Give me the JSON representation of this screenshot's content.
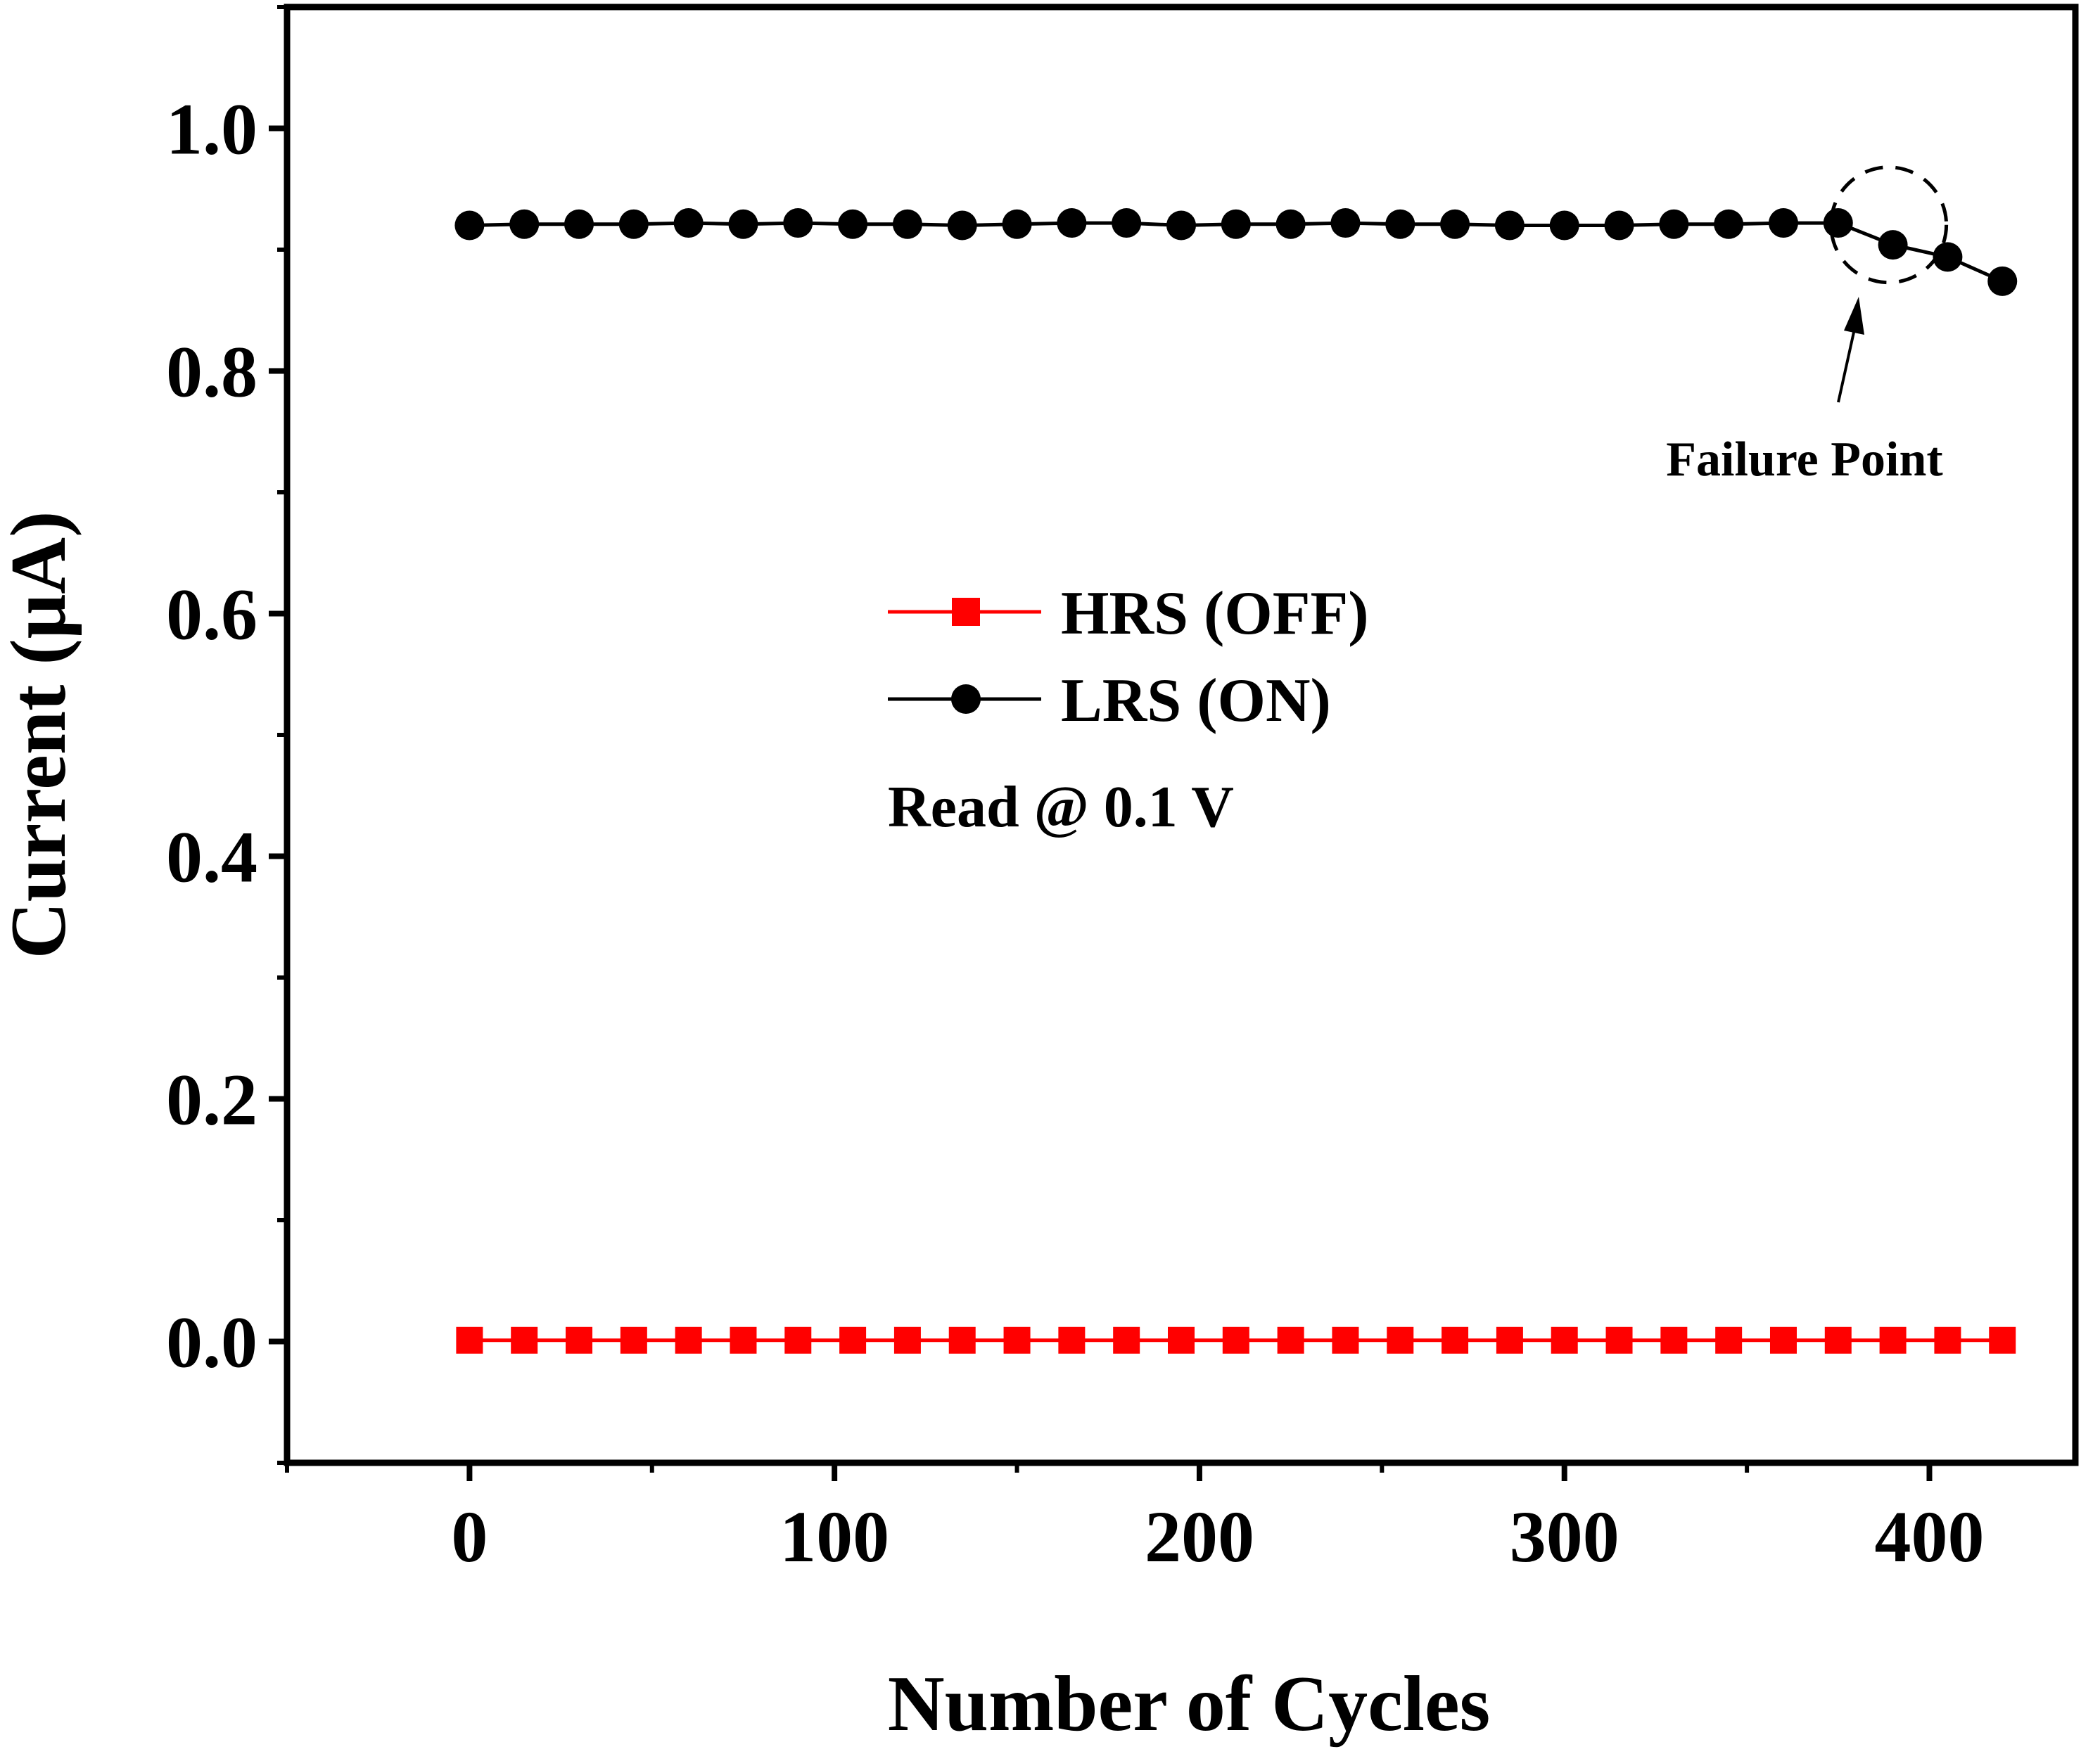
{
  "chart_data": {
    "type": "line",
    "title": "",
    "xlabel": "Number of Cycles",
    "ylabel": "Current (μA)",
    "xlim": [
      -50,
      440
    ],
    "ylim": [
      -0.1,
      1.1
    ],
    "x_ticks": [
      0,
      100,
      200,
      300,
      400
    ],
    "x_tick_labels": [
      "0",
      "100",
      "200",
      "300",
      "400"
    ],
    "y_ticks": [
      0.0,
      0.2,
      0.4,
      0.6,
      0.8,
      1.0
    ],
    "y_tick_labels": [
      "0.0",
      "0.2",
      "0.4",
      "0.6",
      "0.8",
      "1.0"
    ],
    "grid": false,
    "legend_position": "center",
    "x": [
      0,
      15,
      30,
      45,
      60,
      75,
      90,
      105,
      120,
      135,
      150,
      165,
      180,
      195,
      210,
      225,
      240,
      255,
      270,
      285,
      300,
      315,
      330,
      345,
      360,
      375,
      390,
      405,
      420
    ],
    "series": [
      {
        "name": "HRS (OFF)",
        "color": "#ff0000",
        "marker": "square",
        "values": [
          0.001,
          0.001,
          0.001,
          0.001,
          0.001,
          0.001,
          0.001,
          0.001,
          0.001,
          0.001,
          0.001,
          0.001,
          0.001,
          0.001,
          0.001,
          0.001,
          0.001,
          0.001,
          0.001,
          0.001,
          0.001,
          0.001,
          0.001,
          0.001,
          0.001,
          0.001,
          0.001,
          0.001,
          0.001
        ]
      },
      {
        "name": "LRS (ON)",
        "color": "#000000",
        "marker": "circle",
        "values": [
          0.92,
          0.921,
          0.921,
          0.921,
          0.922,
          0.921,
          0.922,
          0.921,
          0.921,
          0.92,
          0.921,
          0.922,
          0.922,
          0.92,
          0.921,
          0.921,
          0.922,
          0.921,
          0.921,
          0.92,
          0.92,
          0.92,
          0.921,
          0.921,
          0.922,
          0.922,
          0.904,
          0.894,
          0.874
        ]
      }
    ],
    "annotations": {
      "note": "Read @ 0.1 V",
      "failure_label": "Failure Point",
      "failure_x": 390,
      "failure_y": 0.91
    }
  }
}
